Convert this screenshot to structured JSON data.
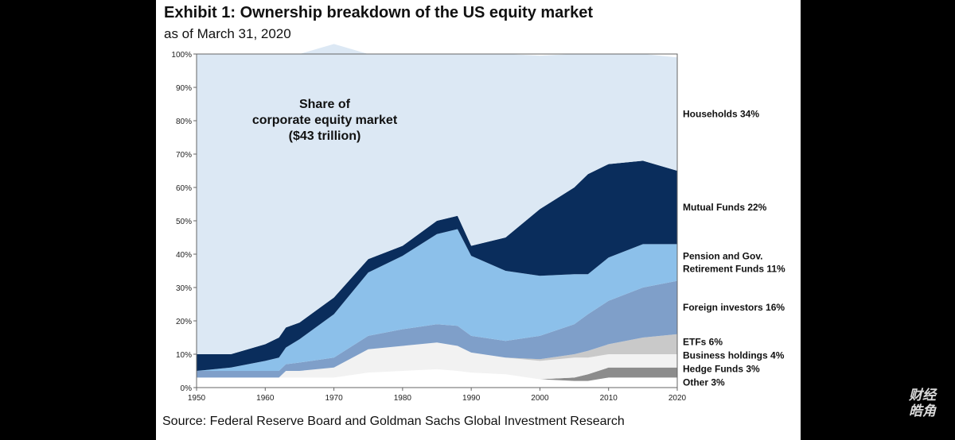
{
  "header": {
    "title": "Exhibit 1: Ownership breakdown of the US equity market",
    "subtitle": "as of March 31, 2020"
  },
  "footer": {
    "source": "Source: Federal Reserve Board and Goldman Sachs Global Investment Research"
  },
  "watermark": {
    "line1": "财经",
    "line2": "皓角"
  },
  "chart_data": {
    "type": "area",
    "stacked": true,
    "title": "Exhibit 1: Ownership breakdown of the US equity market",
    "subtitle": "as of March 31, 2020",
    "annotation": [
      "Share of",
      "corporate equity market",
      "($43 trillion)"
    ],
    "xlim": [
      1950,
      2020
    ],
    "ylim": [
      0,
      100
    ],
    "x_ticks": [
      "1950",
      "1960",
      "1970",
      "1980",
      "1990",
      "2000",
      "2010",
      "2020"
    ],
    "y_ticks": [
      "0%",
      "10%",
      "20%",
      "30%",
      "40%",
      "50%",
      "60%",
      "70%",
      "80%",
      "90%",
      "100%"
    ],
    "x": [
      1950,
      1955,
      1960,
      1962,
      1963,
      1965,
      1970,
      1975,
      1980,
      1985,
      1988,
      1990,
      1995,
      2000,
      2005,
      2007,
      2010,
      2015,
      2020
    ],
    "series": [
      {
        "name": "Other 3%",
        "color": "#ffffff",
        "values": [
          3,
          3,
          3,
          3,
          3,
          3,
          3,
          4.5,
          5,
          5.5,
          5,
          4.5,
          4,
          2.5,
          2,
          2,
          3,
          3,
          3
        ]
      },
      {
        "name": "Hedge Funds 3%",
        "color": "#8c8c8c",
        "values": [
          0,
          0,
          0,
          0,
          0,
          0,
          0,
          0,
          0,
          0,
          0,
          0,
          0,
          0,
          1,
          2,
          3,
          3,
          3
        ]
      },
      {
        "name": "Business holdings 4%",
        "color": "#f2f2f2",
        "values": [
          0,
          0,
          0,
          0,
          2,
          2,
          3,
          7,
          7.5,
          8,
          7.5,
          6,
          5,
          5.5,
          6,
          5,
          4,
          4,
          4
        ]
      },
      {
        "name": "ETFs 6%",
        "color": "#c9c9c9",
        "values": [
          0,
          0,
          0,
          0,
          0,
          0,
          0,
          0,
          0,
          0,
          0,
          0,
          0,
          0.5,
          1,
          2,
          3,
          5,
          6
        ]
      },
      {
        "name": "Foreign investors 16%",
        "color": "#7f9fc9",
        "values": [
          2,
          2,
          2,
          2,
          2,
          2.5,
          3,
          4,
          5,
          5.5,
          6,
          5,
          5,
          7,
          9,
          11,
          13,
          15,
          16
        ]
      },
      {
        "name": "Pension and Gov. Retirement Funds 11%",
        "color": "#8cc0ea",
        "values": [
          0,
          1,
          3,
          4,
          5,
          7,
          13,
          19,
          22,
          27,
          29,
          24,
          21,
          18,
          15,
          12,
          13,
          13,
          11
        ]
      },
      {
        "name": "Mutual Funds 22%",
        "color": "#0a2d5c",
        "values": [
          5,
          4,
          5,
          6,
          6,
          5,
          5,
          4,
          3,
          4,
          4,
          3,
          10,
          20,
          26,
          30,
          28,
          25,
          22
        ]
      },
      {
        "name": "Households 34%",
        "color": "#dce8f4",
        "values": [
          90,
          90,
          87,
          85,
          82,
          80.5,
          76,
          61.5,
          57.5,
          50,
          48.5,
          57.5,
          55,
          46,
          40,
          36,
          33,
          32,
          34
        ]
      }
    ],
    "legend": "right"
  }
}
